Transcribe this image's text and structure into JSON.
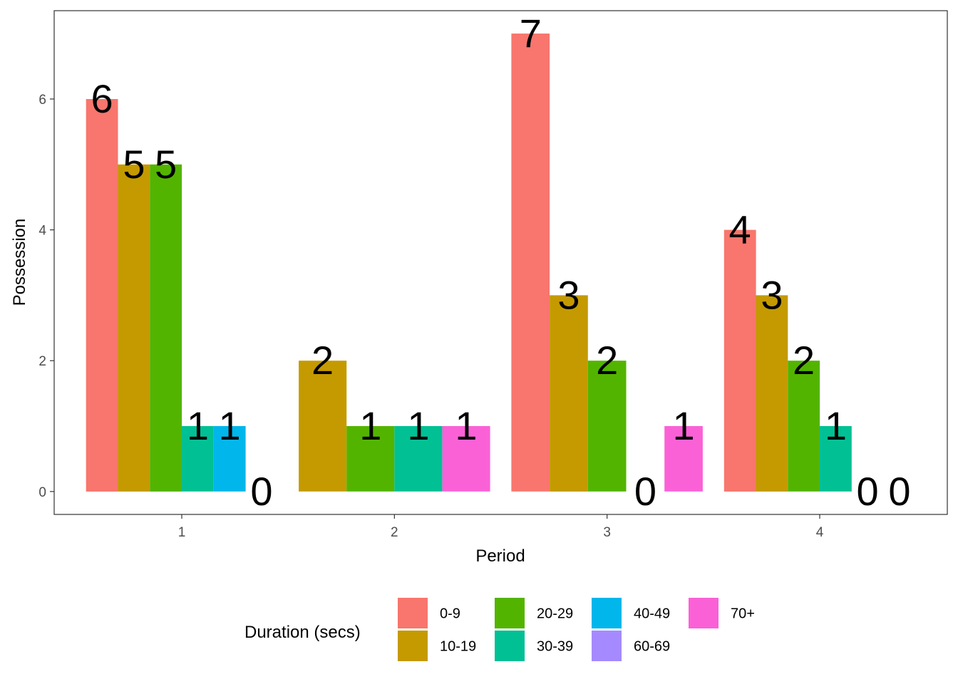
{
  "chart_data": {
    "type": "bar",
    "xlabel": "Period",
    "ylabel": "Possession",
    "categories": [
      "1",
      "2",
      "3",
      "4"
    ],
    "ylim": [
      -0.35,
      7.35
    ],
    "y_ticks": [
      "0",
      "2",
      "4",
      "6"
    ],
    "grid": false,
    "legend": {
      "title": "Duration (secs)",
      "position": "bottom",
      "entries": [
        "0-9",
        "10-19",
        "20-29",
        "30-39",
        "40-49",
        "60-69",
        "70+"
      ]
    },
    "colors": {
      "0-9": "#F8766D",
      "10-19": "#C49A00",
      "20-29": "#53B400",
      "30-39": "#00C094",
      "40-49": "#00B6EB",
      "60-69": "#A58AFF",
      "70+": "#FB61D7"
    },
    "groups": [
      {
        "period": "1",
        "bars": [
          {
            "series": "0-9",
            "value": 6,
            "label": "6"
          },
          {
            "series": "10-19",
            "value": 5,
            "label": "5"
          },
          {
            "series": "20-29",
            "value": 5,
            "label": "5"
          },
          {
            "series": "30-39",
            "value": 1,
            "label": "1"
          },
          {
            "series": "40-49",
            "value": 1,
            "label": "1"
          },
          {
            "series": "70+",
            "value": 0,
            "label": "0"
          }
        ]
      },
      {
        "period": "2",
        "bars": [
          {
            "series": "10-19",
            "value": 2,
            "label": "2"
          },
          {
            "series": "20-29",
            "value": 1,
            "label": "1"
          },
          {
            "series": "30-39",
            "value": 1,
            "label": "1"
          },
          {
            "series": "70+",
            "value": 1,
            "label": "1"
          }
        ]
      },
      {
        "period": "3",
        "bars": [
          {
            "series": "0-9",
            "value": 7,
            "label": "7"
          },
          {
            "series": "10-19",
            "value": 3,
            "label": "3"
          },
          {
            "series": "20-29",
            "value": 2,
            "label": "2"
          },
          {
            "series": "60-69",
            "value": 0,
            "label": "0"
          },
          {
            "series": "70+",
            "value": 1,
            "label": "1"
          }
        ]
      },
      {
        "period": "4",
        "bars": [
          {
            "series": "0-9",
            "value": 4,
            "label": "4"
          },
          {
            "series": "10-19",
            "value": 3,
            "label": "3"
          },
          {
            "series": "20-29",
            "value": 2,
            "label": "2"
          },
          {
            "series": "30-39",
            "value": 1,
            "label": "1"
          },
          {
            "series": "60-69",
            "value": 0,
            "label": "0"
          },
          {
            "series": "70+",
            "value": 0,
            "label": "0"
          }
        ]
      }
    ]
  }
}
